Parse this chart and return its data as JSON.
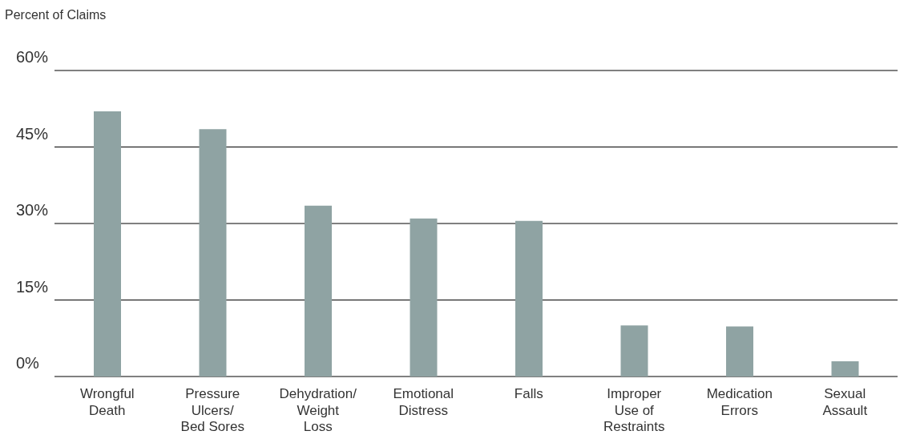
{
  "chart_data": {
    "type": "bar",
    "ylabel": "Percent of Claims",
    "categories": [
      "Wrongful\nDeath",
      "Pressure\nUlcers/\nBed Sores",
      "Dehydration/\nWeight\nLoss",
      "Emotional\nDistress",
      "Falls",
      "Improper\nUse of\nRestraints",
      "Medication\nErrors",
      "Sexual\nAssault"
    ],
    "values": [
      52,
      48.5,
      33.5,
      31,
      30.5,
      10,
      9.8,
      3
    ],
    "color": "#8fa3a3",
    "ylim": [
      0,
      60
    ],
    "yticks": [
      {
        "value": 0,
        "label": "0%"
      },
      {
        "value": 15,
        "label": "15%"
      },
      {
        "value": 30,
        "label": "30%"
      },
      {
        "value": 45,
        "label": "45%"
      },
      {
        "value": 60,
        "label": "60%"
      }
    ],
    "grid": "y",
    "legend": false
  }
}
